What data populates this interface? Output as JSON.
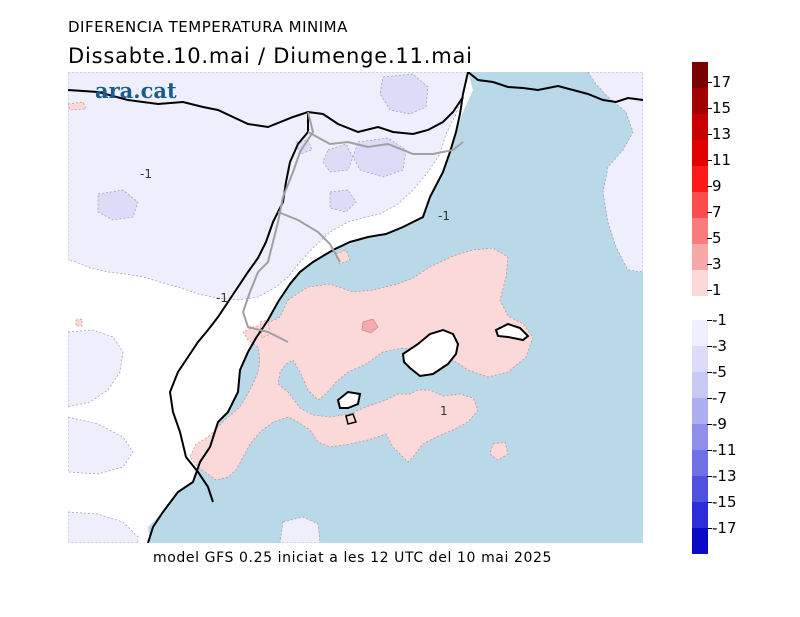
{
  "header": {
    "title": "DIFERENCIA TEMPERATURA MINIMA",
    "subtitle": "Dissabte.10.mai  /  Diumenge.11.mai"
  },
  "logo": {
    "text": "ara.cat",
    "color": "#1b5b8f"
  },
  "footer": {
    "text": "model GFS 0.25 iniciat a les 12 UTC del 10 mai 2025"
  },
  "map": {
    "contour_labels": [
      "-1",
      "-1",
      "-1",
      "1"
    ],
    "colors": {
      "sea": "#b9d8e8",
      "land": "#ffffff",
      "diff_pos_1": "#fcd9d9",
      "diff_pos_3": "#f8aaaa",
      "diff_neg_1": "#eeeefc",
      "diff_neg_3": "#dcdcf9"
    }
  },
  "colorbar": {
    "positive": [
      {
        "label": "17",
        "color": "#7a0000"
      },
      {
        "label": "15",
        "color": "#a30000"
      },
      {
        "label": "13",
        "color": "#c80000"
      },
      {
        "label": "11",
        "color": "#e30000"
      },
      {
        "label": "9",
        "color": "#ff1a1a"
      },
      {
        "label": "7",
        "color": "#ff4d4d"
      },
      {
        "label": "5",
        "color": "#f77c7c"
      },
      {
        "label": "3",
        "color": "#f5a8a8"
      },
      {
        "label": "1",
        "color": "#fcd9d9"
      }
    ],
    "negative": [
      {
        "label": "-1",
        "color": "#eeeefc"
      },
      {
        "label": "-3",
        "color": "#dcdcf8"
      },
      {
        "label": "-5",
        "color": "#c8c8f4"
      },
      {
        "label": "-7",
        "color": "#adadf0"
      },
      {
        "label": "-9",
        "color": "#9090ec"
      },
      {
        "label": "-11",
        "color": "#6f6fe6"
      },
      {
        "label": "-13",
        "color": "#4f4fe0"
      },
      {
        "label": "-15",
        "color": "#2e2ed8"
      },
      {
        "label": "-17",
        "color": "#0a0ac8"
      }
    ]
  }
}
